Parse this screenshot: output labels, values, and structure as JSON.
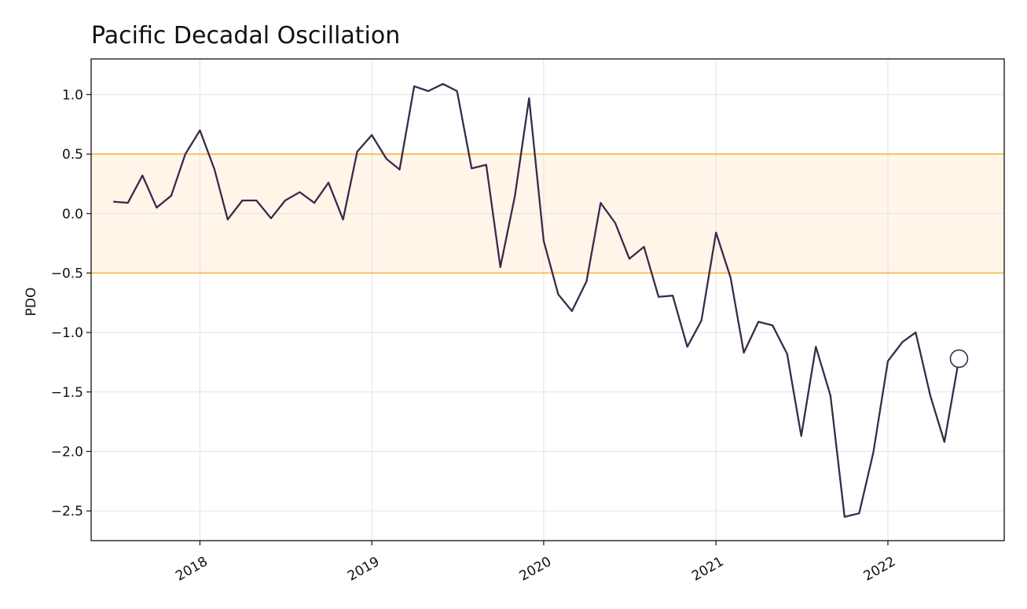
{
  "chart_data": {
    "type": "line",
    "title": "Pacific Decadal Oscillation",
    "xlabel": "",
    "ylabel": "PDO",
    "ylim": [
      -2.75,
      1.3
    ],
    "xlim": [
      "2017-05-15",
      "2022-09-05"
    ],
    "grid": true,
    "yticks": [
      1.0,
      0.5,
      0.0,
      -0.5,
      -1.0,
      -1.5,
      -2.0,
      -2.5
    ],
    "ytick_labels": [
      "1.0",
      "0.5",
      "0.0",
      "−0.5",
      "−1.0",
      "−1.5",
      "−2.0",
      "−2.5"
    ],
    "xticks": [
      "2018-01-01",
      "2019-01-01",
      "2020-01-01",
      "2021-01-01",
      "2022-01-01"
    ],
    "xtick_labels": [
      "2018",
      "2019",
      "2020",
      "2021",
      "2022"
    ],
    "band": {
      "lower": -0.5,
      "upper": 0.5,
      "fill_color": "#fff5e9",
      "line_color": "#f5b642"
    },
    "line_color": "#3b2a4a",
    "last_point_marker": "open-circle",
    "series": [
      {
        "x": [
          "2017-07-01",
          "2017-08-01",
          "2017-09-01",
          "2017-10-01",
          "2017-11-01",
          "2017-12-01",
          "2018-01-01",
          "2018-02-01",
          "2018-03-01",
          "2018-04-01",
          "2018-05-01",
          "2018-06-01",
          "2018-07-01",
          "2018-08-01",
          "2018-09-01",
          "2018-10-01",
          "2018-11-01",
          "2018-12-01",
          "2019-01-01",
          "2019-02-01",
          "2019-03-01",
          "2019-04-01",
          "2019-05-01",
          "2019-06-01",
          "2019-07-01",
          "2019-08-01",
          "2019-09-01",
          "2019-10-01",
          "2019-11-01",
          "2019-12-01",
          "2020-01-01",
          "2020-02-01",
          "2020-03-01",
          "2020-04-01",
          "2020-05-01",
          "2020-06-01",
          "2020-07-01",
          "2020-08-01",
          "2020-09-01",
          "2020-10-01",
          "2020-11-01",
          "2020-12-01",
          "2021-01-01",
          "2021-02-01",
          "2021-03-01",
          "2021-04-01",
          "2021-05-01",
          "2021-06-01",
          "2021-07-01",
          "2021-08-01",
          "2021-09-01",
          "2021-10-01",
          "2021-11-01",
          "2021-12-01",
          "2022-01-01",
          "2022-02-01",
          "2022-03-01",
          "2022-04-01",
          "2022-05-01",
          "2022-06-01"
        ],
        "values": [
          0.1,
          0.09,
          0.32,
          0.05,
          0.15,
          0.5,
          0.7,
          0.37,
          -0.05,
          0.11,
          0.11,
          -0.04,
          0.11,
          0.18,
          0.09,
          0.26,
          -0.05,
          0.52,
          0.66,
          0.46,
          0.37,
          1.07,
          1.03,
          1.09,
          1.03,
          0.38,
          0.41,
          -0.45,
          0.15,
          0.97,
          -0.23,
          -0.68,
          -0.82,
          -0.57,
          0.09,
          -0.08,
          -0.38,
          -0.28,
          -0.7,
          -0.69,
          -1.12,
          -0.9,
          -0.16,
          -0.54,
          -1.17,
          -0.91,
          -0.94,
          -1.18,
          -1.87,
          -1.12,
          -1.53,
          -2.55,
          -2.52,
          -2.01,
          -1.24,
          -1.08,
          -1.0,
          -1.53,
          -1.92,
          -1.22
        ]
      }
    ]
  }
}
